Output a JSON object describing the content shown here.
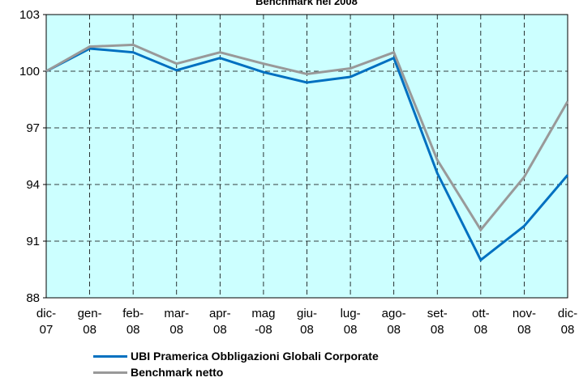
{
  "chart_data": {
    "type": "line",
    "title": "Benchmark nel 2008",
    "categories": [
      "dic-07",
      "gen-08",
      "feb-08",
      "mar-08",
      "apr-08",
      "mag-08",
      "giu-08",
      "lug-08",
      "ago-08",
      "set-08",
      "ott-08",
      "nov-08",
      "dic-08"
    ],
    "series": [
      {
        "name": "UBI Pramerica Obbligazioni Globali Corporate",
        "color": "#0070c0",
        "values": [
          100.0,
          101.2,
          101.0,
          100.05,
          100.7,
          99.95,
          99.4,
          99.7,
          100.7,
          94.6,
          90.0,
          91.8,
          94.5
        ]
      },
      {
        "name": "Benchmark netto",
        "color": "#999999",
        "values": [
          100.0,
          101.3,
          101.4,
          100.4,
          101.0,
          100.4,
          99.85,
          100.15,
          101.0,
          95.3,
          91.6,
          94.4,
          98.4
        ]
      }
    ],
    "ylim": [
      88,
      103
    ],
    "yticks": [
      88,
      91,
      94,
      97,
      100,
      103
    ],
    "grid": true,
    "background": "#ccffff"
  }
}
